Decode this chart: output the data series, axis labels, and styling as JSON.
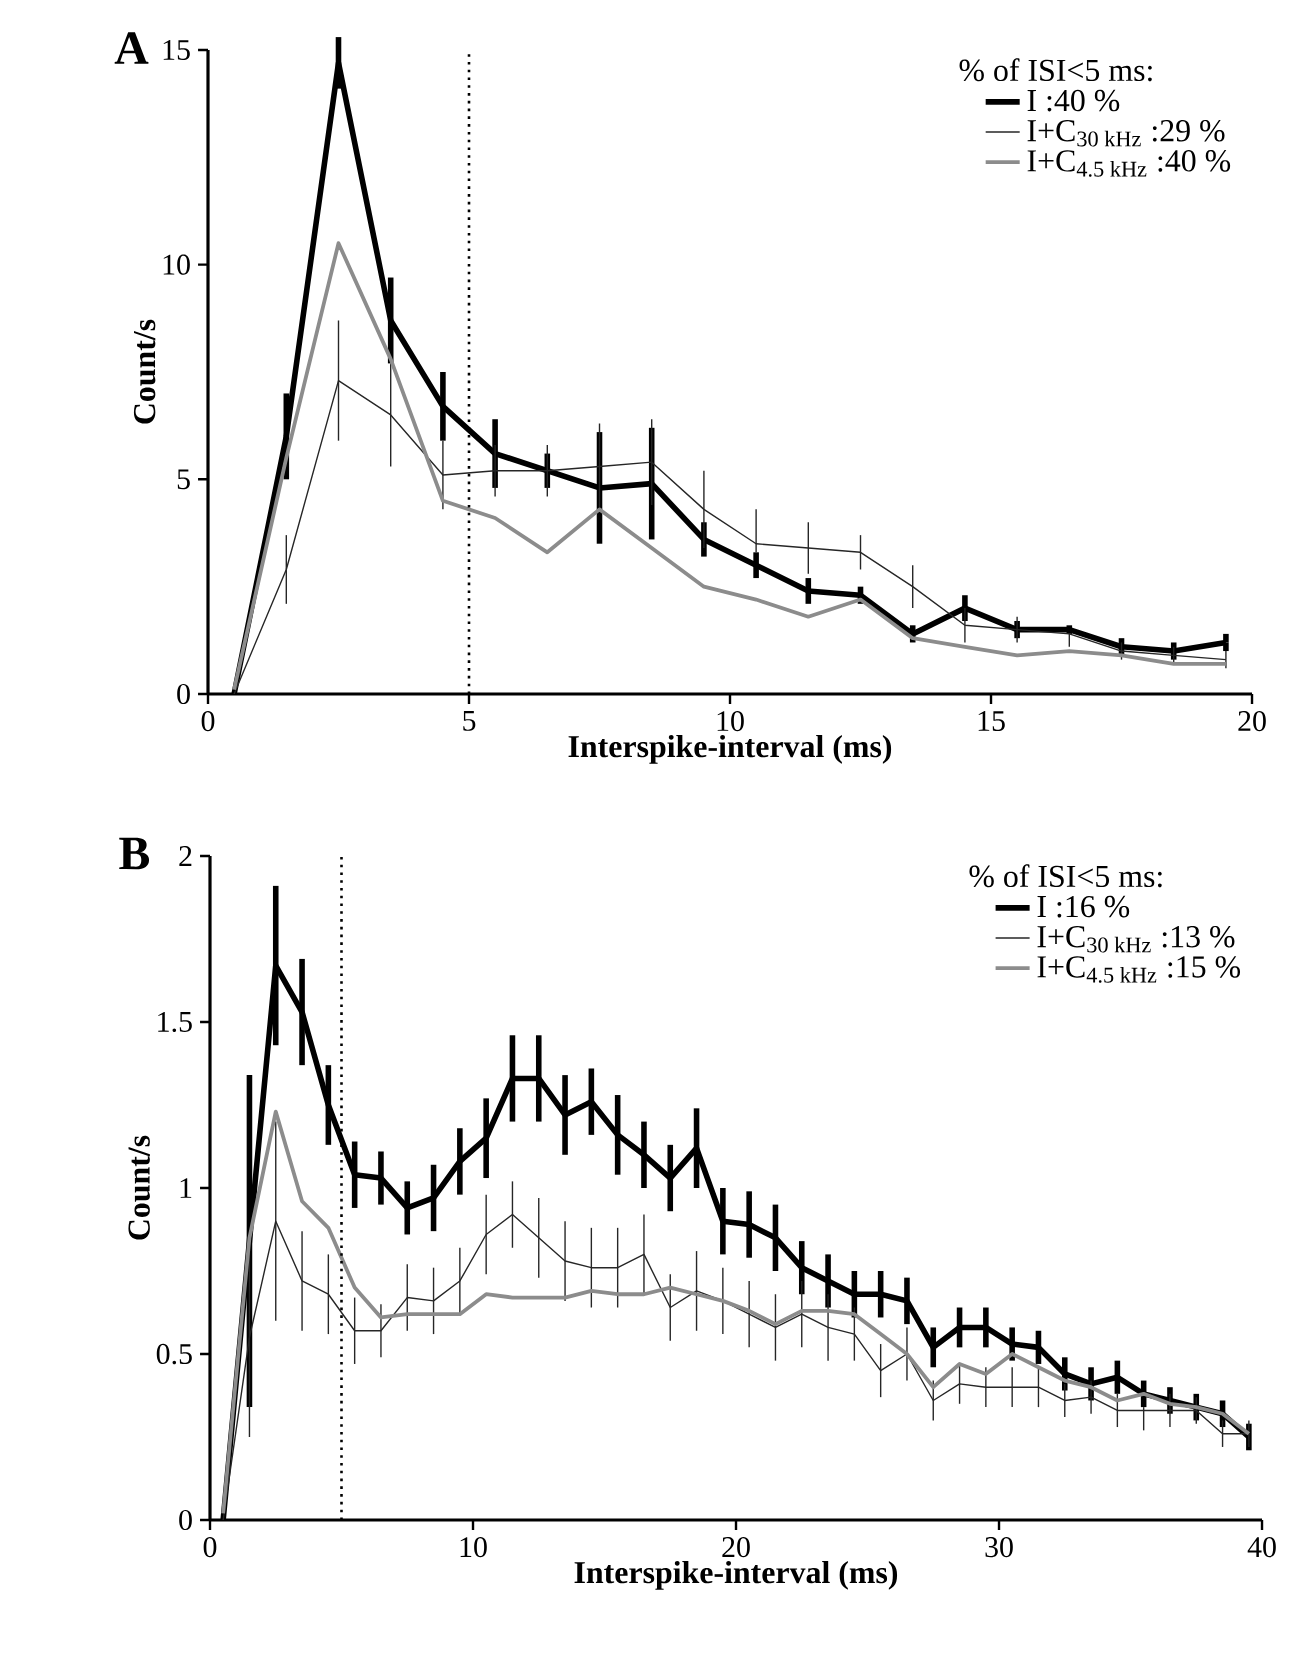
{
  "chart_data": [
    {
      "type": "line",
      "title": "A",
      "xlabel": "Interspike-interval (ms)",
      "ylabel": "Count/s",
      "legend_title": "% of ISI<5 ms:",
      "x": [
        0.5,
        1.5,
        2.5,
        3.5,
        4.5,
        5.5,
        6.5,
        7.5,
        8.5,
        9.5,
        10.5,
        11.5,
        12.5,
        13.5,
        14.5,
        15.5,
        16.5,
        17.5,
        18.5,
        19.5
      ],
      "series": [
        {
          "name": "I :40 %",
          "color": "#000000",
          "values": [
            0,
            6.0,
            14.7,
            8.7,
            6.7,
            5.6,
            5.2,
            4.8,
            4.9,
            3.6,
            3.0,
            2.4,
            2.3,
            1.4,
            2.0,
            1.5,
            1.5,
            1.1,
            1.0,
            1.2
          ],
          "errors": [
            null,
            1.0,
            0.6,
            1.0,
            0.8,
            0.8,
            0.4,
            1.3,
            1.3,
            0.4,
            0.3,
            0.3,
            0.2,
            0.2,
            0.3,
            0.2,
            0.1,
            0.2,
            0.2,
            0.2
          ]
        },
        {
          "name": "I+C$_{30 kHz}$ :29 %",
          "color": "#262626",
          "values": [
            0,
            2.9,
            7.3,
            6.5,
            5.1,
            5.2,
            5.2,
            5.3,
            5.4,
            4.3,
            3.5,
            3.4,
            3.3,
            2.5,
            1.6,
            1.5,
            1.4,
            1.0,
            0.9,
            0.8
          ],
          "errors": [
            null,
            0.8,
            1.4,
            1.2,
            0.8,
            0.6,
            0.6,
            1.0,
            1.0,
            0.9,
            [
              3.3,
              4.3
            ],
            0.6,
            0.4,
            0.5,
            0.4,
            0.3,
            [
              1.1,
              1.4
            ],
            0.2,
            0.2,
            0.2
          ]
        },
        {
          "name": "I+C$_{4.5 kHz}$ :40 %",
          "color": "#8c8c8c",
          "values": [
            0.1,
            5.5,
            10.5,
            7.8,
            4.5,
            4.1,
            3.3,
            4.3,
            3.4,
            2.5,
            2.2,
            1.8,
            2.2,
            1.3,
            1.1,
            0.9,
            1.0,
            0.9,
            0.7,
            0.7
          ]
        }
      ],
      "xlim": [
        0,
        20
      ],
      "ylim": [
        0,
        15
      ],
      "xticks": [
        0,
        5,
        10,
        15,
        20
      ],
      "yticks": [
        0,
        5,
        10,
        15
      ],
      "ref_lines": [
        {
          "axis": "x",
          "value": 5,
          "line_style": "dotted",
          "color": "#000000"
        }
      ],
      "legend": "top right",
      "grid": false,
      "marker": "none",
      "line_style": "solid"
    },
    {
      "type": "line",
      "title": "B",
      "xlabel": "Interspike-interval (ms)",
      "ylabel": "Count/s",
      "legend_title": "% of ISI<5 ms:",
      "x": [
        0.5,
        1.5,
        2.5,
        3.5,
        4.5,
        5.5,
        6.5,
        7.5,
        8.5,
        9.5,
        10.5,
        11.5,
        12.5,
        13.5,
        14.5,
        15.5,
        16.5,
        17.5,
        18.5,
        19.5,
        20.5,
        21.5,
        22.5,
        23.5,
        24.5,
        25.5,
        26.5,
        27.5,
        28.5,
        29.5,
        30.5,
        31.5,
        32.5,
        33.5,
        34.5,
        35.5,
        36.5,
        37.5,
        38.5,
        39.5
      ],
      "series": [
        {
          "name": "I :16 %",
          "color": "#000000",
          "values": [
            0,
            0.84,
            1.67,
            1.53,
            1.25,
            1.04,
            1.03,
            0.94,
            0.97,
            1.08,
            1.15,
            1.33,
            1.33,
            1.22,
            1.26,
            1.16,
            1.1,
            1.03,
            1.12,
            0.9,
            0.89,
            0.85,
            0.76,
            0.72,
            0.68,
            0.68,
            0.66,
            0.52,
            0.58,
            0.58,
            0.53,
            0.52,
            0.44,
            0.41,
            0.43,
            0.38,
            0.36,
            0.34,
            0.32,
            0.25
          ],
          "errors": [
            null,
            0.5,
            0.24,
            0.16,
            0.12,
            0.1,
            0.08,
            0.08,
            0.1,
            0.1,
            0.12,
            0.13,
            0.13,
            0.12,
            0.1,
            0.12,
            0.1,
            0.1,
            0.12,
            0.1,
            0.1,
            0.1,
            0.08,
            0.08,
            0.07,
            0.07,
            0.07,
            0.06,
            0.06,
            0.06,
            0.05,
            0.05,
            0.05,
            0.05,
            0.05,
            0.04,
            0.04,
            0.04,
            0.04,
            0.04
          ]
        },
        {
          "name": "I+C$_{30 kHz}$ :13 %",
          "color": "#262626",
          "values": [
            0,
            0.55,
            0.9,
            0.72,
            0.68,
            0.57,
            0.57,
            0.67,
            0.66,
            0.72,
            0.86,
            0.92,
            0.85,
            0.78,
            0.76,
            0.76,
            0.8,
            0.64,
            0.69,
            0.66,
            0.62,
            0.58,
            0.62,
            0.58,
            0.56,
            0.45,
            0.5,
            0.36,
            0.41,
            0.4,
            0.4,
            0.4,
            0.36,
            0.37,
            0.33,
            0.33,
            0.33,
            0.33,
            0.26,
            0.26
          ],
          "errors": [
            null,
            0.3,
            0.3,
            0.15,
            0.12,
            0.1,
            0.08,
            0.1,
            0.1,
            0.1,
            0.12,
            0.1,
            0.12,
            0.12,
            0.12,
            0.12,
            0.12,
            0.1,
            0.12,
            0.1,
            0.1,
            0.1,
            0.1,
            0.1,
            0.08,
            0.08,
            0.08,
            0.06,
            0.06,
            0.06,
            0.06,
            0.06,
            0.05,
            0.05,
            0.05,
            [
              0.27,
              0.34
            ],
            0.05,
            0.04,
            0.04,
            0.04
          ]
        },
        {
          "name": "I+C$_{4.5 kHz}$ :15 %",
          "color": "#8c8c8c",
          "values": [
            0.02,
            0.85,
            1.23,
            0.96,
            0.88,
            0.7,
            0.61,
            0.62,
            0.62,
            0.62,
            0.68,
            0.67,
            0.67,
            0.67,
            0.69,
            0.68,
            0.68,
            0.7,
            0.68,
            0.66,
            0.63,
            0.59,
            0.63,
            0.63,
            0.62,
            0.56,
            0.5,
            0.4,
            0.47,
            0.44,
            0.5,
            0.46,
            0.42,
            0.4,
            0.36,
            0.38,
            0.35,
            0.34,
            0.32,
            0.26
          ]
        }
      ],
      "xlim": [
        0,
        40
      ],
      "ylim": [
        0,
        2
      ],
      "xticks": [
        0,
        10,
        20,
        30,
        40
      ],
      "yticks": [
        0,
        0.5,
        1,
        1.5,
        2
      ],
      "ref_lines": [
        {
          "axis": "x",
          "value": 5,
          "line_style": "dotted",
          "color": "#000000"
        }
      ],
      "legend": "top right",
      "grid": false,
      "marker": "none",
      "line_style": "solid"
    }
  ]
}
